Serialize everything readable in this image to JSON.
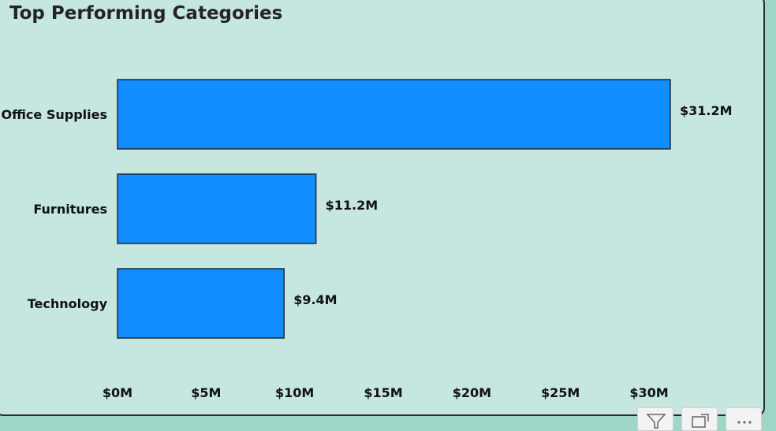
{
  "chart_data": {
    "type": "bar",
    "orientation": "horizontal",
    "title": "Top Performing Categories",
    "categories": [
      "Office Supplies",
      "Furnitures",
      "Technology"
    ],
    "values": [
      31.2,
      11.2,
      9.4
    ],
    "value_labels": [
      "$31.2M",
      "$11.2M",
      "$9.4M"
    ],
    "unit": "$M",
    "xlim": [
      0,
      31.2
    ],
    "x_ticks": [
      0,
      5,
      10,
      15,
      20,
      25,
      30
    ],
    "x_tick_labels": [
      "$0M",
      "$5M",
      "$10M",
      "$15M",
      "$20M",
      "$25M",
      "$30M"
    ],
    "grid": false,
    "bar_color": "#118dff"
  },
  "colors": {
    "background": "#c5e7e0",
    "bar": "#118dff",
    "text": "#111111"
  },
  "corner_icons": [
    "filter-icon",
    "focus-mode-icon",
    "more-options-icon"
  ]
}
